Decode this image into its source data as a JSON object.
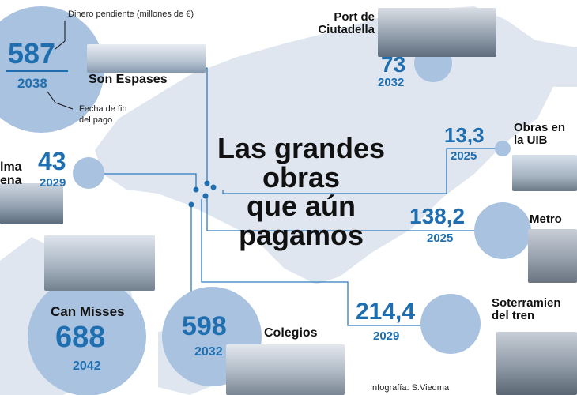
{
  "title_lines": [
    "Las grandes",
    "obras",
    "que aún",
    "pagamos"
  ],
  "legend": {
    "amount_note": "Dinero pendiente (millones de €)",
    "date_note_1": "Fecha de fin",
    "date_note_2": "del pago"
  },
  "items": {
    "son_espases": {
      "name": "Son Espases",
      "amount": "587",
      "year": "2038"
    },
    "ciutadella": {
      "name_1": "Port de",
      "name_2": "Ciutadella",
      "amount": "73",
      "year": "2032"
    },
    "uib": {
      "name_1": "Obras en",
      "name_2": "la UIB",
      "amount": "13,3",
      "year": "2025"
    },
    "palma_arena": {
      "name_1": "lma",
      "name_2": "ena",
      "amount": "43",
      "year": "2029"
    },
    "metro": {
      "name": "Metro",
      "amount": "138,2",
      "year": "2025"
    },
    "can_misses": {
      "name": "Can Misses",
      "amount": "688",
      "year": "2042"
    },
    "colegios": {
      "name": "Colegios",
      "amount": "598",
      "year": "2032"
    },
    "soterramiento": {
      "name_1": "Soterramien",
      "name_2": "del tren",
      "amount": "214,4",
      "year": "2029"
    }
  },
  "credit": "Infografía: S.Viedma",
  "colors": {
    "accent": "#1f6fb0",
    "circle": "#a8c2df",
    "map": "#dfe6ef",
    "line": "#2e7bbf"
  }
}
